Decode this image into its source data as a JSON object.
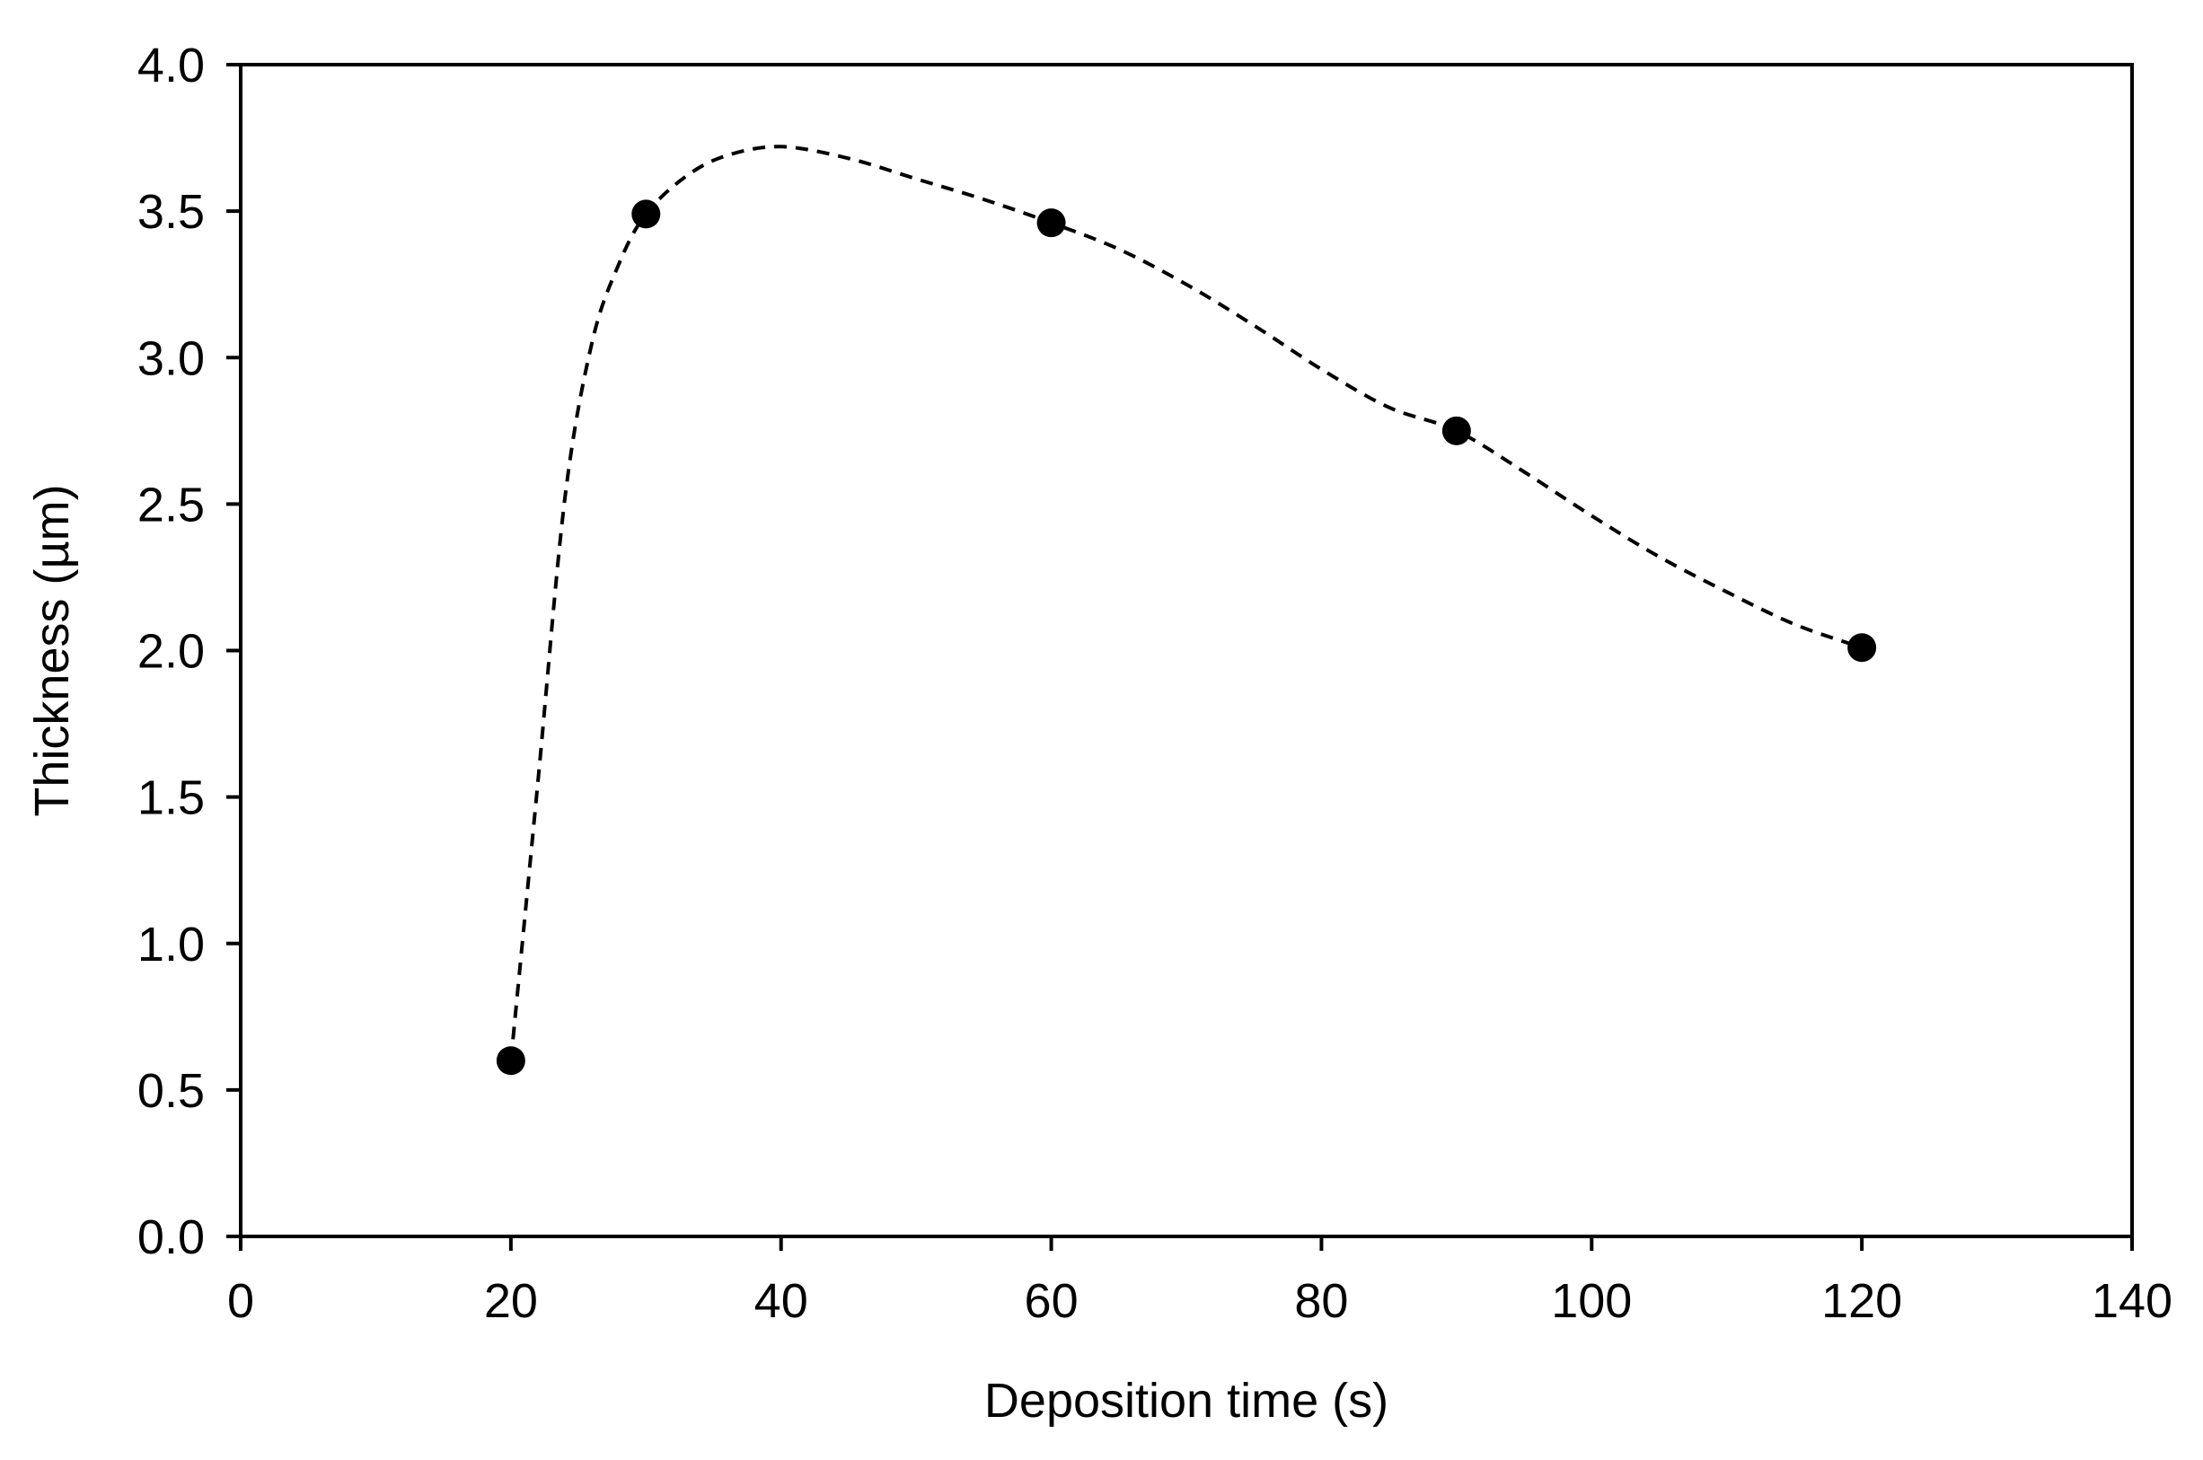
{
  "chart_data": {
    "type": "scatter",
    "title": "",
    "xlabel": "Deposition time (s)",
    "ylabel": "Thickness (µm)",
    "xlim": [
      0,
      140
    ],
    "ylim": [
      0.0,
      4.0
    ],
    "x_ticks": [
      0,
      20,
      40,
      60,
      80,
      100,
      120,
      140
    ],
    "x_tick_labels": [
      "0",
      "20",
      "40",
      "60",
      "80",
      "100",
      "120",
      "140"
    ],
    "y_ticks": [
      0.0,
      0.5,
      1.0,
      1.5,
      2.0,
      2.5,
      3.0,
      3.5,
      4.0
    ],
    "y_tick_labels": [
      "0.0",
      "0.5",
      "1.0",
      "1.5",
      "2.0",
      "2.5",
      "3.0",
      "3.5",
      "4.0"
    ],
    "grid": false,
    "series": [
      {
        "marker": "circle",
        "color": "#000000",
        "x": [
          20,
          30,
          60,
          90,
          120
        ],
        "y": [
          0.6,
          3.49,
          3.46,
          2.75,
          2.01
        ]
      }
    ],
    "trend_line": {
      "style": "dashed",
      "color": "#000000",
      "x": [
        20,
        22,
        24,
        26,
        28,
        30,
        33,
        36,
        40,
        45,
        50,
        55,
        60,
        65,
        70,
        75,
        80,
        85,
        90,
        95,
        100,
        105,
        110,
        115,
        120
      ],
      "y": [
        0.6,
        1.55,
        2.52,
        3.05,
        3.32,
        3.49,
        3.62,
        3.69,
        3.72,
        3.68,
        3.61,
        3.54,
        3.46,
        3.37,
        3.25,
        3.11,
        2.96,
        2.83,
        2.75,
        2.61,
        2.46,
        2.32,
        2.2,
        2.09,
        2.01
      ]
    }
  }
}
